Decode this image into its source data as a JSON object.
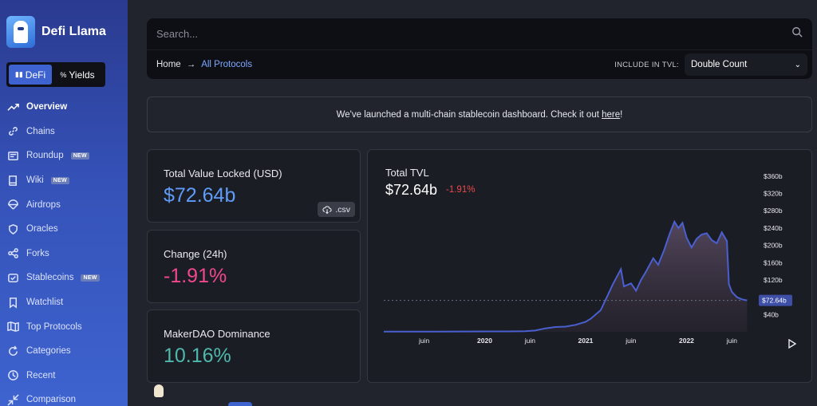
{
  "brand": {
    "name": "Defi Llama"
  },
  "mode_switch": {
    "defi": "DeFi",
    "yields": "Yields"
  },
  "sidebar": {
    "items": [
      {
        "label": "Overview",
        "icon": "trend-up-icon",
        "active": true,
        "badge": ""
      },
      {
        "label": "Chains",
        "icon": "link-icon",
        "active": false,
        "badge": ""
      },
      {
        "label": "Roundup",
        "icon": "newspaper-icon",
        "active": false,
        "badge": "NEW"
      },
      {
        "label": "Wiki",
        "icon": "book-icon",
        "active": false,
        "badge": "NEW"
      },
      {
        "label": "Airdrops",
        "icon": "parachute-icon",
        "active": false,
        "badge": ""
      },
      {
        "label": "Oracles",
        "icon": "shield-icon",
        "active": false,
        "badge": ""
      },
      {
        "label": "Forks",
        "icon": "share-icon",
        "active": false,
        "badge": ""
      },
      {
        "label": "Stablecoins",
        "icon": "shield-check-icon",
        "active": false,
        "badge": "NEW"
      },
      {
        "label": "Watchlist",
        "icon": "bookmark-icon",
        "active": false,
        "badge": ""
      },
      {
        "label": "Top Protocols",
        "icon": "map-icon",
        "active": false,
        "badge": ""
      },
      {
        "label": "Categories",
        "icon": "refresh-icon",
        "active": false,
        "badge": ""
      },
      {
        "label": "Recent",
        "icon": "clock-icon",
        "active": false,
        "badge": ""
      },
      {
        "label": "Comparison",
        "icon": "shrink-icon",
        "active": false,
        "badge": ""
      }
    ]
  },
  "search": {
    "placeholder": "Search..."
  },
  "breadcrumb": {
    "home": "Home",
    "arrow": "→",
    "current": "All Protocols"
  },
  "tvl_filter": {
    "label": "INCLUDE IN TVL:",
    "value": "Double Count"
  },
  "announcement": {
    "text": "We've launched a multi-chain stablecoin dashboard. Check it out ",
    "link": "here",
    "suffix": "!"
  },
  "cards": {
    "tvl": {
      "label": "Total Value Locked (USD)",
      "value": "$72.64b",
      "csv": ".csv"
    },
    "change": {
      "label": "Change (24h)",
      "value": "-1.91%"
    },
    "dominance": {
      "label": "MakerDAO Dominance",
      "value": "10.16%"
    }
  },
  "chart_header": {
    "title": "Total TVL",
    "value": "$72.64b",
    "change": "-1.91%"
  },
  "colors": {
    "accent": "#3e63cf",
    "line": "#4a5fd0",
    "negative": "#f0488c",
    "positive_teal": "#4fb8ad",
    "tvl_blue": "#5f9bf7"
  },
  "chart_data": {
    "type": "area",
    "title": "Total TVL",
    "xlabel": "",
    "ylabel": "",
    "x_tick_labels": [
      "juin",
      "2020",
      "juin",
      "2021",
      "juin",
      "2022",
      "juin"
    ],
    "y_tick_labels": [
      "$360b",
      "$320b",
      "$280b",
      "$240b",
      "$200b",
      "$160b",
      "$120b",
      "$40b"
    ],
    "ylim": [
      0,
      380
    ],
    "xlim": [
      2019.0,
      2022.7
    ],
    "current_value_label": "$72.64b",
    "current_value": 72.64,
    "points": [
      [
        2019.0,
        0.5
      ],
      [
        2019.3,
        0.6
      ],
      [
        2019.5,
        0.6
      ],
      [
        2019.75,
        0.7
      ],
      [
        2020.0,
        0.9
      ],
      [
        2020.2,
        1.0
      ],
      [
        2020.4,
        1.5
      ],
      [
        2020.5,
        3
      ],
      [
        2020.6,
        8
      ],
      [
        2020.7,
        11
      ],
      [
        2020.8,
        12
      ],
      [
        2020.9,
        16
      ],
      [
        2021.0,
        23
      ],
      [
        2021.05,
        30
      ],
      [
        2021.1,
        40
      ],
      [
        2021.15,
        50
      ],
      [
        2021.2,
        75
      ],
      [
        2021.27,
        110
      ],
      [
        2021.35,
        145
      ],
      [
        2021.38,
        105
      ],
      [
        2021.45,
        112
      ],
      [
        2021.5,
        95
      ],
      [
        2021.55,
        120
      ],
      [
        2021.6,
        140
      ],
      [
        2021.67,
        170
      ],
      [
        2021.72,
        155
      ],
      [
        2021.78,
        190
      ],
      [
        2021.83,
        225
      ],
      [
        2021.88,
        255
      ],
      [
        2021.92,
        240
      ],
      [
        2021.96,
        252
      ],
      [
        2022.0,
        218
      ],
      [
        2022.05,
        195
      ],
      [
        2022.1,
        215
      ],
      [
        2022.15,
        225
      ],
      [
        2022.2,
        228
      ],
      [
        2022.25,
        212
      ],
      [
        2022.3,
        205
      ],
      [
        2022.35,
        230
      ],
      [
        2022.4,
        210
      ],
      [
        2022.42,
        110
      ],
      [
        2022.45,
        92
      ],
      [
        2022.5,
        80
      ],
      [
        2022.55,
        75
      ],
      [
        2022.6,
        72.64
      ]
    ]
  }
}
